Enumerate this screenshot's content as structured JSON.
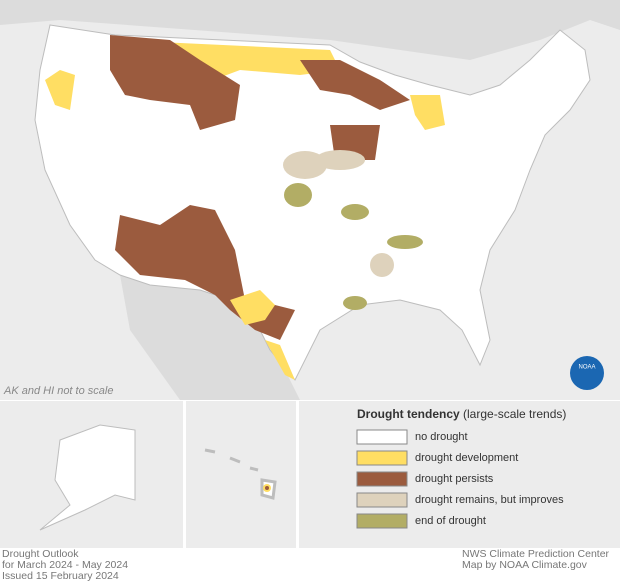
{
  "map": {
    "note": "AK and HI not to scale",
    "logo": "NOAA"
  },
  "legend": {
    "title": "Drought tendency",
    "subtitle": "(large-scale trends)",
    "items": [
      {
        "label": "no drought",
        "color": "#ffffff"
      },
      {
        "label": "drought development",
        "color": "#ffde63"
      },
      {
        "label": "drought persists",
        "color": "#9b5b3e"
      },
      {
        "label": "drought remains, but improves",
        "color": "#ded2bc"
      },
      {
        "label": "end of drought",
        "color": "#b2ad65"
      }
    ]
  },
  "footer": {
    "left": [
      "Drought Outlook",
      "for March 2024 - May 2024",
      "Issued 15 February 2024"
    ],
    "right": [
      "NWS Climate Prediction Center",
      "Map by NOAA Climate.gov"
    ]
  }
}
